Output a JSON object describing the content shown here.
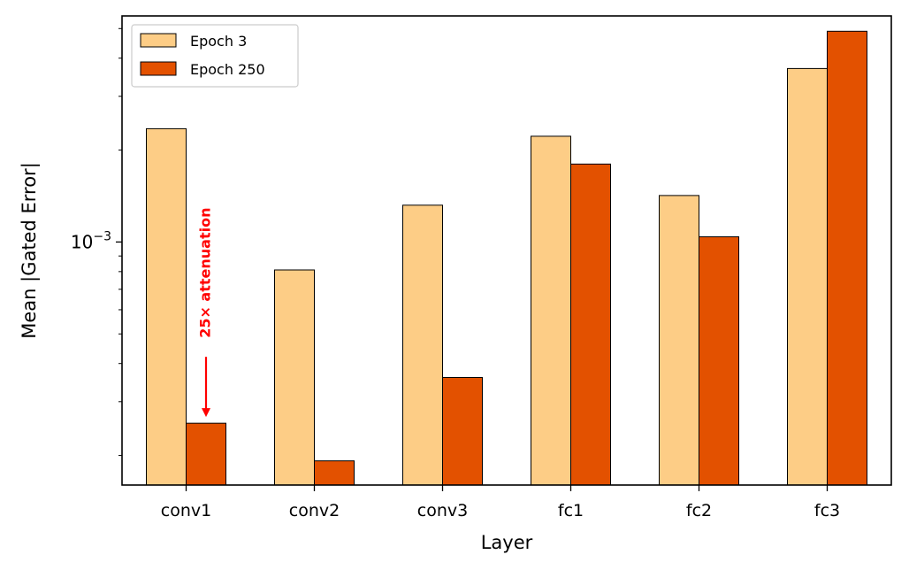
{
  "chart_data": {
    "type": "bar",
    "title": "",
    "xlabel": "Layer",
    "ylabel": "Mean |Gated Error|",
    "yscale": "log",
    "ylim": [
      0.00016,
      0.0055
    ],
    "y_tick_major": [
      {
        "value": 0.001,
        "base": "10",
        "exp": "−3"
      }
    ],
    "y_tick_minor": [
      0.0002,
      0.0003,
      0.0004,
      0.0005,
      0.0006,
      0.0007,
      0.0008,
      0.0009,
      0.002,
      0.003,
      0.004,
      0.005
    ],
    "grid": false,
    "legend_position": "top-left",
    "categories": [
      "conv1",
      "conv2",
      "conv3",
      "fc1",
      "fc2",
      "fc3"
    ],
    "series": [
      {
        "name": "Epoch 3",
        "color": "#fdcd86",
        "values": [
          0.00235,
          0.00081,
          0.00132,
          0.00222,
          0.00142,
          0.0037
        ]
      },
      {
        "name": "Epoch 250",
        "color": "#e35100",
        "values": [
          0.000255,
          0.000192,
          0.00036,
          0.0018,
          0.00104,
          0.0049
        ]
      }
    ],
    "annotation": {
      "text": "25× attenuation",
      "color": "#ff0000",
      "category": "conv1",
      "series_index": 1
    }
  }
}
